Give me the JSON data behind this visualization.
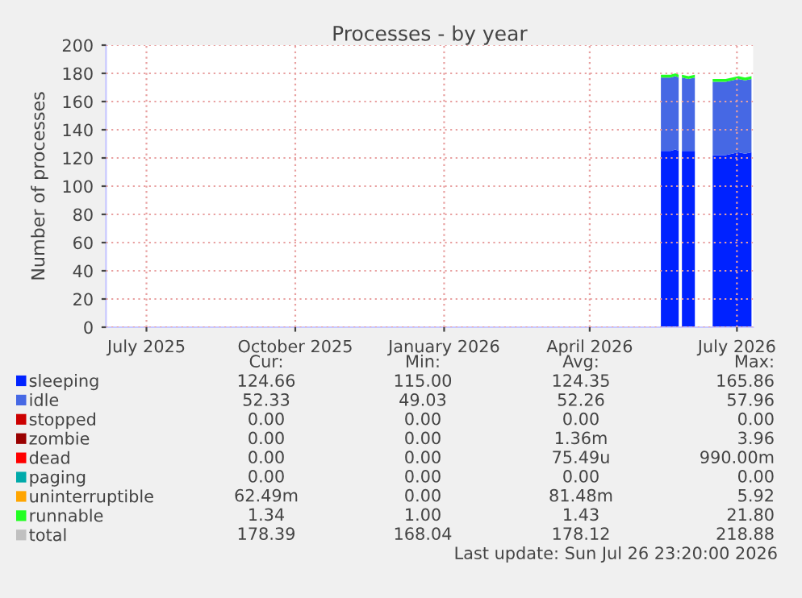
{
  "chart_data": {
    "type": "area",
    "stacked": true,
    "title": "Processes - by year",
    "ylabel": "Number of processes",
    "x": [
      "2026-05-30",
      "2026-06-02",
      "2026-06-05",
      "2026-06-08",
      "2026-06-10",
      "2026-06-11",
      "2026-06-12",
      "2026-06-16",
      "2026-06-20",
      "2026-06-21",
      "2026-06-30",
      "2026-07-01",
      "2026-07-05",
      "2026-07-09",
      "2026-07-13",
      "2026-07-17",
      "2026-07-21",
      "2026-07-25"
    ],
    "xlim": [
      "2025-06-21",
      "2026-07-26"
    ],
    "xticks": [
      {
        "value": "2025-07-16",
        "label": "July 2025"
      },
      {
        "value": "2025-10-16",
        "label": "October 2025"
      },
      {
        "value": "2026-01-16",
        "label": "January 2026"
      },
      {
        "value": "2026-04-16",
        "label": "April 2026"
      },
      {
        "value": "2026-07-16",
        "label": "July 2026"
      }
    ],
    "ylim": [
      0,
      200
    ],
    "yticks": [
      0,
      20,
      40,
      60,
      80,
      100,
      120,
      140,
      160,
      180,
      200
    ],
    "grid": true,
    "legend": "bottom",
    "series": [
      {
        "name": "sleeping",
        "color": "#0022ff",
        "values": [
          125,
          125,
          125,
          126,
          125,
          null,
          125,
          125,
          125,
          null,
          null,
          122,
          122,
          122,
          123,
          124,
          123,
          124
        ]
      },
      {
        "name": "idle",
        "color": "#4668e4",
        "values": [
          52,
          52,
          52,
          52,
          52,
          null,
          52,
          51,
          52,
          null,
          null,
          52,
          52,
          52,
          52,
          52,
          52,
          52
        ]
      },
      {
        "name": "stopped",
        "color": "#cc0000",
        "values": [
          null,
          null,
          null,
          null,
          null,
          null,
          null,
          null,
          null,
          null,
          null,
          null,
          null,
          null,
          null,
          null,
          null,
          null
        ]
      },
      {
        "name": "zombie",
        "color": "#990000",
        "values": [
          null,
          null,
          null,
          null,
          null,
          null,
          null,
          null,
          null,
          null,
          null,
          null,
          null,
          null,
          null,
          null,
          null,
          null
        ]
      },
      {
        "name": "dead",
        "color": "#ff0000",
        "values": [
          null,
          null,
          null,
          null,
          null,
          null,
          null,
          null,
          null,
          null,
          null,
          null,
          null,
          null,
          null,
          null,
          null,
          null
        ]
      },
      {
        "name": "paging",
        "color": "#00aaaa",
        "values": [
          null,
          null,
          null,
          null,
          null,
          null,
          null,
          null,
          null,
          null,
          null,
          null,
          null,
          null,
          null,
          null,
          null,
          null
        ]
      },
      {
        "name": "uninterruptible",
        "color": "#ffa500",
        "values": [
          null,
          null,
          null,
          null,
          null,
          null,
          null,
          null,
          null,
          null,
          null,
          null,
          null,
          null,
          null,
          null,
          null,
          null
        ]
      },
      {
        "name": "runnable",
        "color": "#22ff22",
        "values": [
          2,
          2,
          2,
          2,
          2,
          null,
          2,
          2,
          2,
          null,
          null,
          2,
          2,
          2,
          2,
          2,
          2,
          2
        ]
      },
      {
        "name": "total",
        "color": "#c0c0c0",
        "values": [
          null,
          null,
          null,
          null,
          null,
          null,
          null,
          null,
          null,
          null,
          null,
          null,
          null,
          null,
          null,
          null,
          null,
          null
        ]
      }
    ],
    "annotations": [
      "Cur:",
      "Min:",
      "Avg:",
      "Max:",
      "124.66",
      "115.00",
      "124.35",
      "165.86",
      "52.33",
      "49.03",
      "52.26",
      "57.96",
      "0.00",
      "0.00",
      "0.00",
      "0.00",
      "0.00",
      "0.00",
      "1.36m",
      "3.96",
      "0.00",
      "0.00",
      "75.49u",
      "990.00m",
      "0.00",
      "0.00",
      "0.00",
      "0.00",
      "62.49m",
      "0.00",
      "81.48m",
      "5.92",
      "1.34",
      "1.00",
      "1.43",
      "21.80",
      "178.39",
      "168.04",
      "178.12",
      "218.88",
      "Last update: Sun Jul 26 23:20:00 2026"
    ]
  }
}
